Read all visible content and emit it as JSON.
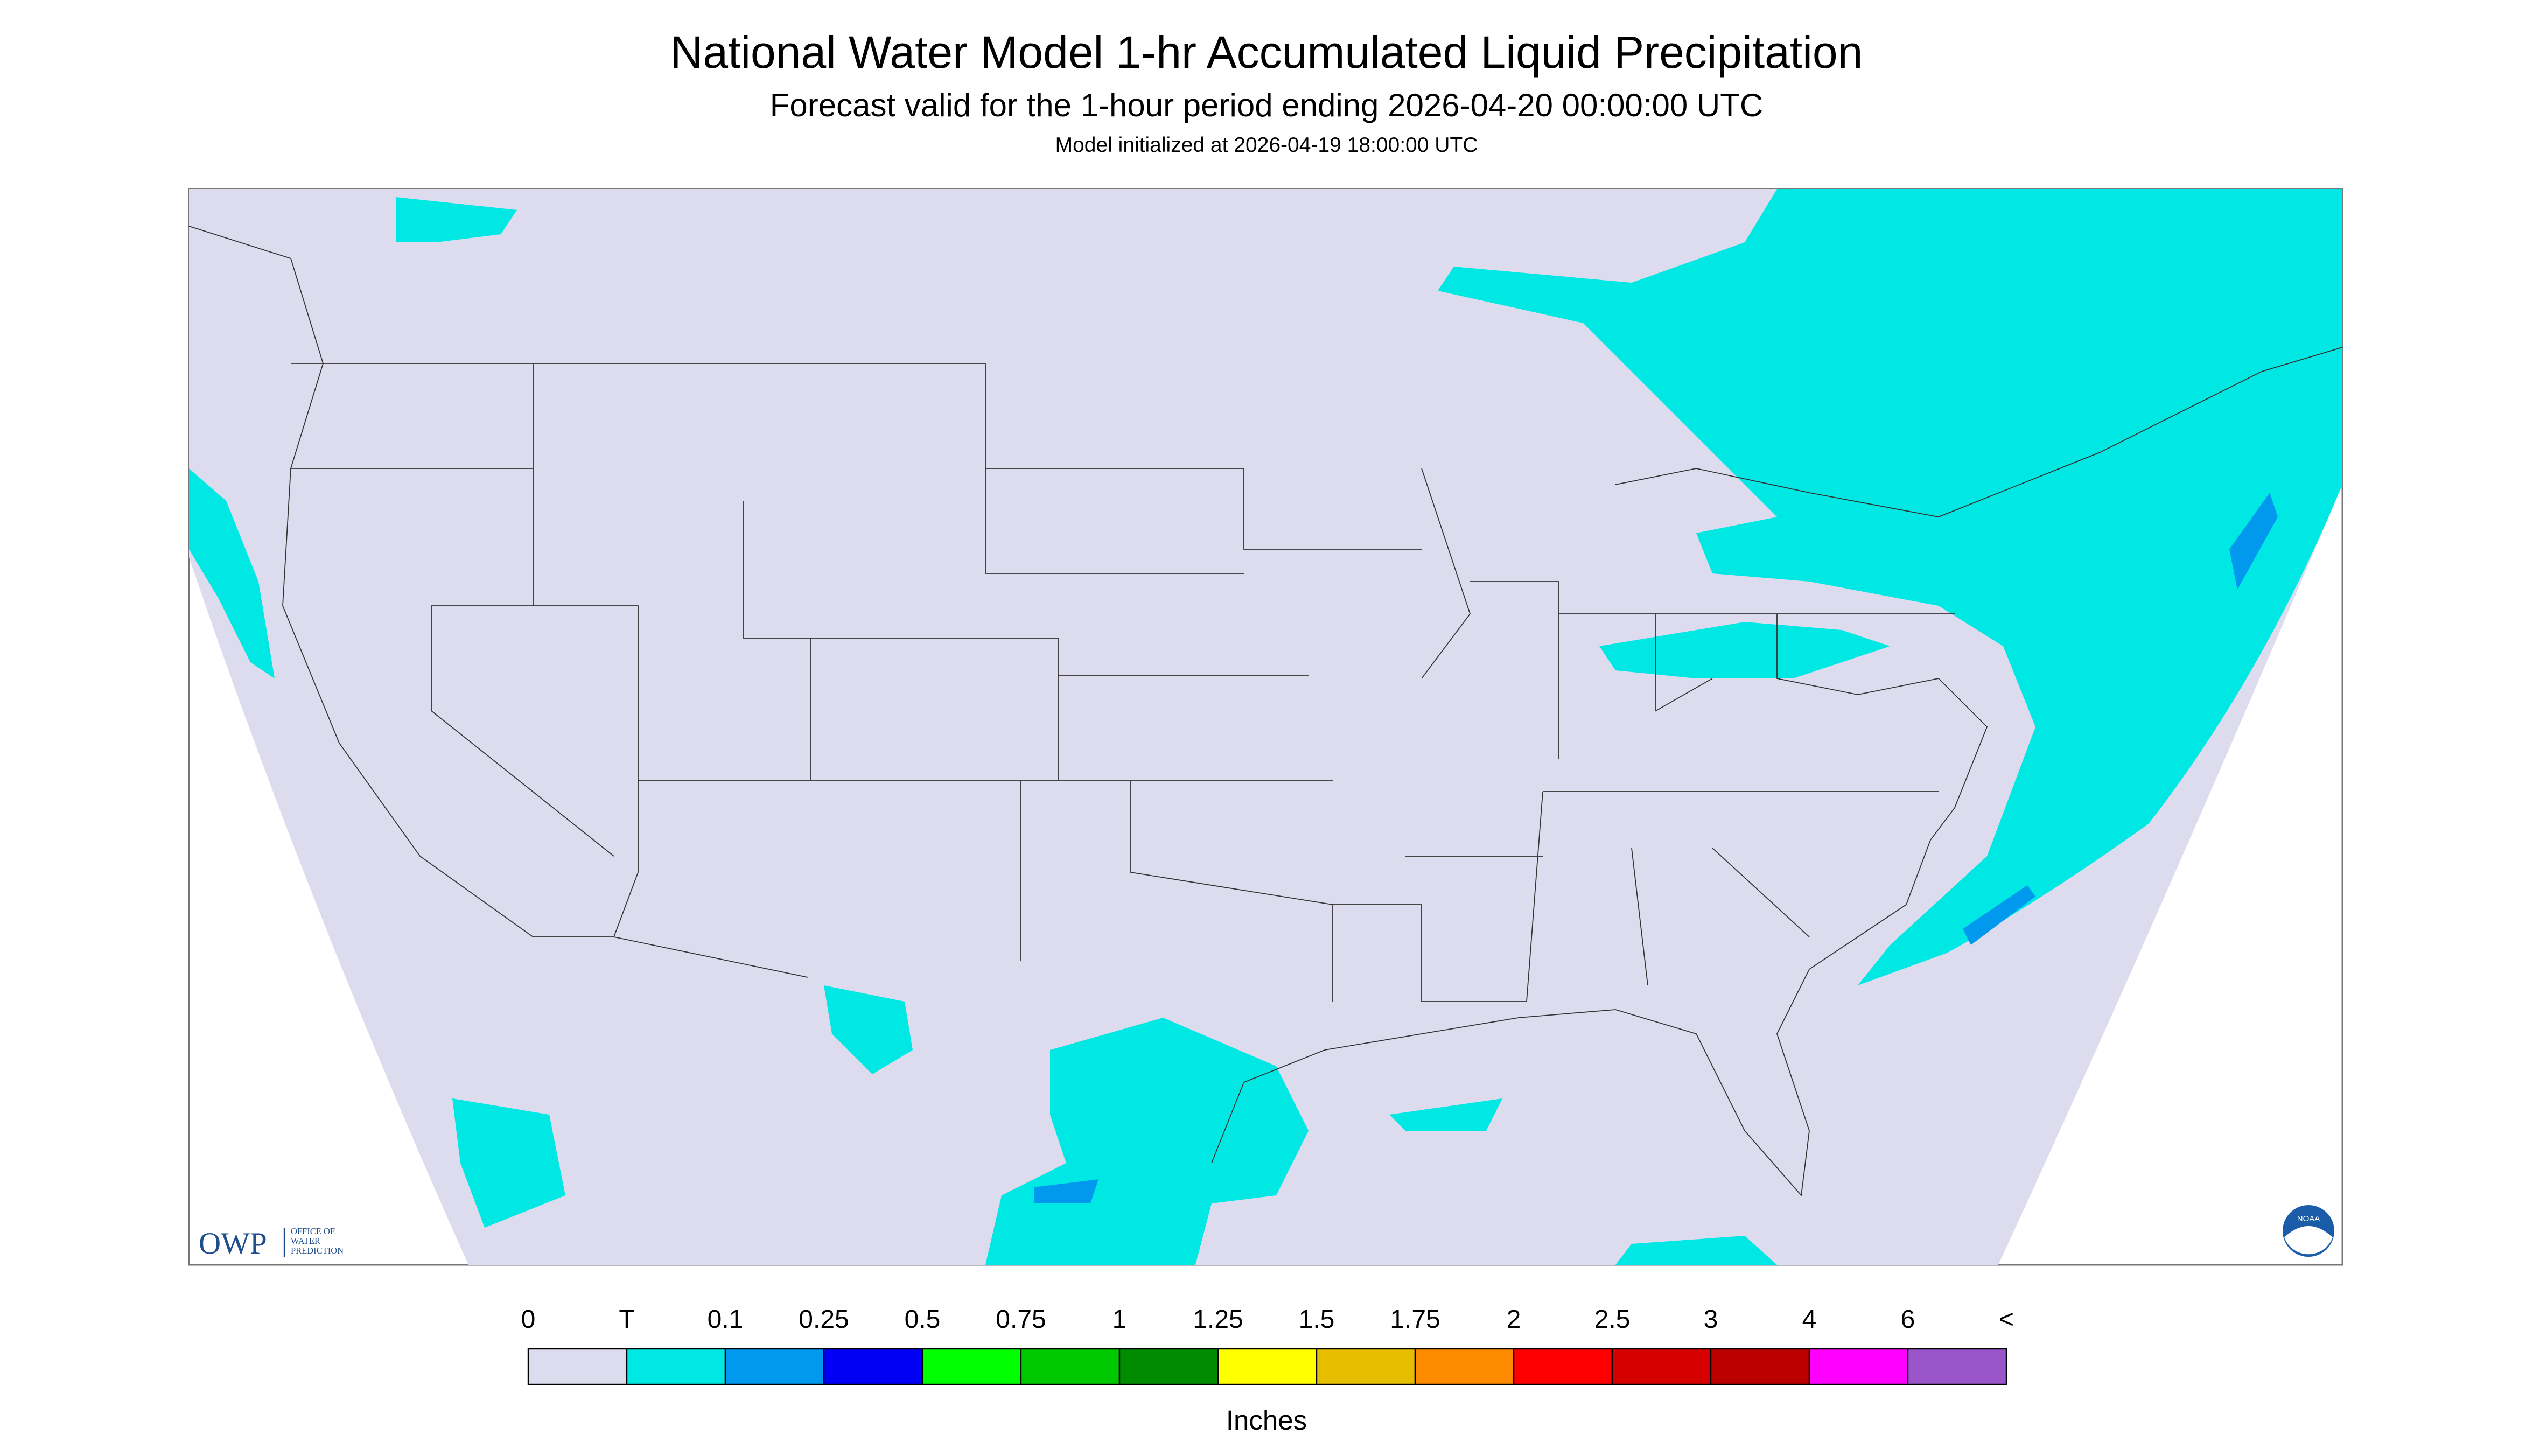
{
  "title": "National Water Model 1-hr Accumulated Liquid Precipitation",
  "subtitle": "Forecast valid for the 1-hour period ending 2026-04-20 00:00:00 UTC",
  "note": "Model initialized at 2026-04-19 18:00:00 UTC",
  "logo": {
    "name": "OWP",
    "lines": [
      "OFFICE OF",
      "WATER",
      "PREDICTION"
    ],
    "agency": "NOAA"
  },
  "legend": {
    "labels": [
      "0",
      "T",
      "0.1",
      "0.25",
      "0.5",
      "0.75",
      "1",
      "1.25",
      "1.5",
      "1.75",
      "2",
      "2.5",
      "3",
      "4",
      "6",
      "<"
    ],
    "colors": [
      "#dcdcee",
      "#00e8e4",
      "#0099ee",
      "#0000f5",
      "#00ff00",
      "#00c800",
      "#008c00",
      "#ffff00",
      "#e6be00",
      "#ff8c00",
      "#ff0000",
      "#d70000",
      "#bc0000",
      "#ff00ff",
      "#9955c9"
    ],
    "unit": "Inches"
  }
}
